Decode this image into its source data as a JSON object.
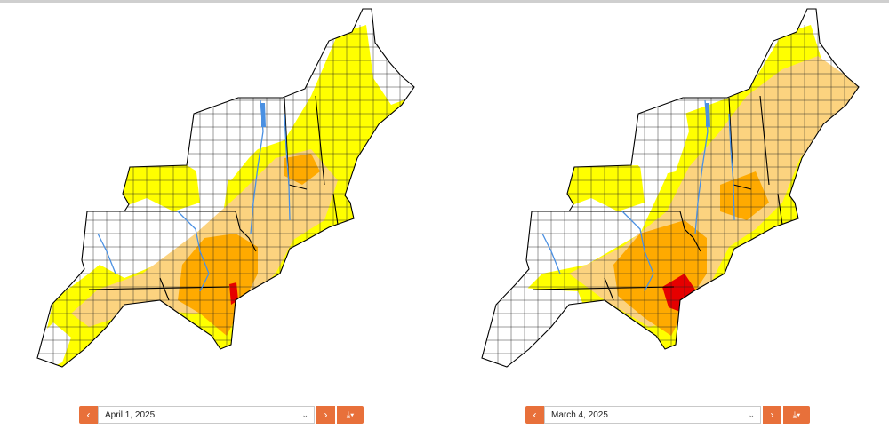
{
  "colors": {
    "none": "#ffffff",
    "D0": "#ffff00",
    "D1": "#fcd37f",
    "D2": "#ffaa00",
    "D3": "#e60000",
    "accent": "#e8703a",
    "water": "#4a90e2"
  },
  "maps": [
    {
      "date": "April 1, 2025",
      "prev_icon": "chevron-left-icon",
      "next_icon": "chevron-right-icon",
      "download_icon": "download-icon",
      "dropdown_icon": "chevron-down-icon"
    },
    {
      "date": "March 4, 2025",
      "prev_icon": "chevron-left-icon",
      "next_icon": "chevron-right-icon",
      "download_icon": "download-icon",
      "dropdown_icon": "chevron-down-icon"
    }
  ]
}
